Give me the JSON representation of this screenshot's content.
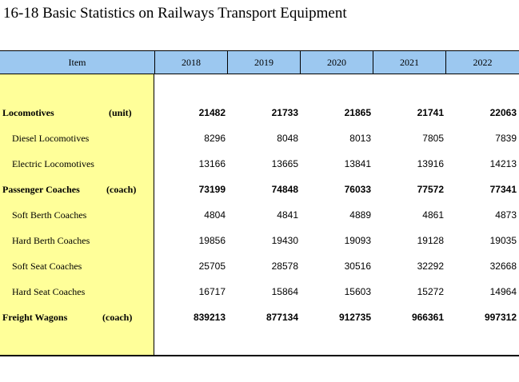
{
  "title": "16-18  Basic Statistics on Railways Transport Equipment",
  "header": {
    "item": "Item",
    "years": [
      "2018",
      "2019",
      "2020",
      "2021",
      "2022"
    ]
  },
  "rows": [
    {
      "label": "Locomotives",
      "unit": "(unit)",
      "bold": true,
      "values": [
        "21482",
        "21733",
        "21865",
        "21741",
        "22063"
      ]
    },
    {
      "label": "Diesel Locomotives",
      "unit": "",
      "bold": false,
      "values": [
        "8296",
        "8048",
        "8013",
        "7805",
        "7839"
      ]
    },
    {
      "label": "Electric Locomotives",
      "unit": "",
      "bold": false,
      "values": [
        "13166",
        "13665",
        "13841",
        "13916",
        "14213"
      ]
    },
    {
      "label": "Passenger Coaches",
      "unit": "(coach)",
      "bold": true,
      "values": [
        "73199",
        "74848",
        "76033",
        "77572",
        "77341"
      ]
    },
    {
      "label": "Soft Berth Coaches",
      "unit": "",
      "bold": false,
      "values": [
        "4804",
        "4841",
        "4889",
        "4861",
        "4873"
      ]
    },
    {
      "label": "Hard Berth Coaches",
      "unit": "",
      "bold": false,
      "values": [
        "19856",
        "19430",
        "19093",
        "19128",
        "19035"
      ]
    },
    {
      "label": "Soft Seat Coaches",
      "unit": "",
      "bold": false,
      "values": [
        "25705",
        "28578",
        "30516",
        "32292",
        "32668"
      ]
    },
    {
      "label": "Hard Seat Coaches",
      "unit": "",
      "bold": false,
      "values": [
        "16717",
        "15864",
        "15603",
        "15272",
        "14964"
      ]
    },
    {
      "label": "Freight Wagons",
      "unit": "(coach)",
      "bold": true,
      "values": [
        "839213",
        "877134",
        "912735",
        "966361",
        "997312"
      ]
    }
  ],
  "colors": {
    "header_bg": "#9cc8f0",
    "item_col_bg": "#ffff99"
  }
}
